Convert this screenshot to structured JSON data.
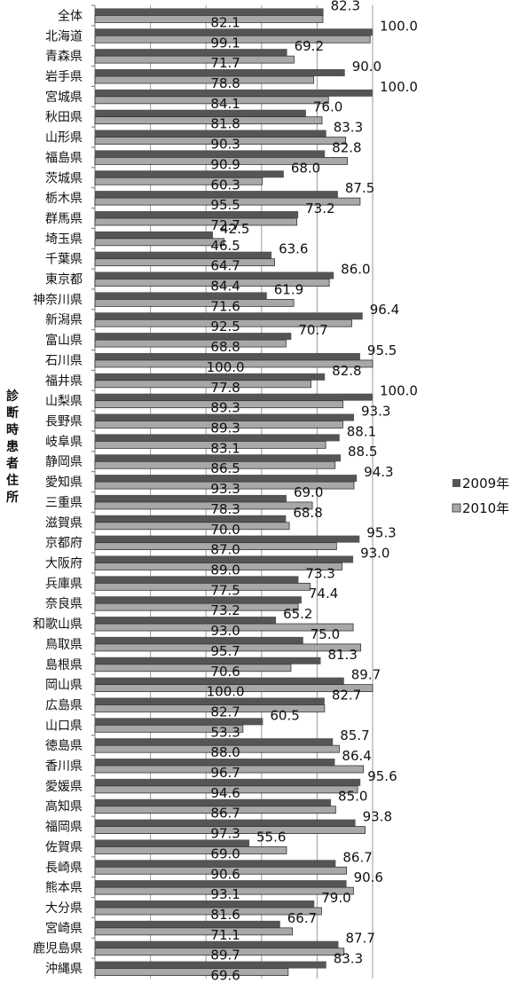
{
  "chart_data": {
    "type": "bar",
    "orientation": "horizontal",
    "ylabel": "診断時患者住所",
    "xlabel": "",
    "xlim": [
      0,
      100
    ],
    "grid": true,
    "legend_position": "right",
    "categories": [
      "全体",
      "北海道",
      "青森県",
      "岩手県",
      "宮城県",
      "秋田県",
      "山形県",
      "福島県",
      "茨城県",
      "栃木県",
      "群馬県",
      "埼玉県",
      "千葉県",
      "東京都",
      "神奈川県",
      "新潟県",
      "富山県",
      "石川県",
      "福井県",
      "山梨県",
      "長野県",
      "岐阜県",
      "静岡県",
      "愛知県",
      "三重県",
      "滋賀県",
      "京都府",
      "大阪府",
      "兵庫県",
      "奈良県",
      "和歌山県",
      "鳥取県",
      "島根県",
      "岡山県",
      "広島県",
      "山口県",
      "徳島県",
      "香川県",
      "愛媛県",
      "高知県",
      "福岡県",
      "佐賀県",
      "長崎県",
      "熊本県",
      "大分県",
      "宮崎県",
      "鹿児島県",
      "沖縄県"
    ],
    "series": [
      {
        "name": "2009年",
        "color": "#555555",
        "values": [
          82.3,
          100.0,
          69.2,
          90.0,
          100.0,
          76.0,
          83.3,
          82.8,
          68.0,
          87.5,
          73.2,
          42.5,
          63.6,
          86.0,
          61.9,
          96.4,
          70.7,
          95.5,
          82.8,
          100.0,
          93.3,
          88.1,
          88.5,
          94.3,
          69.0,
          68.8,
          95.3,
          93.0,
          73.3,
          74.4,
          65.2,
          75.0,
          81.3,
          89.7,
          82.7,
          60.5,
          85.7,
          86.4,
          95.6,
          85.0,
          93.8,
          55.6,
          86.7,
          90.6,
          79.0,
          66.7,
          87.7,
          83.3
        ]
      },
      {
        "name": "2010年",
        "color": "#a8a8a8",
        "values": [
          82.1,
          99.1,
          71.7,
          78.8,
          84.1,
          81.8,
          90.3,
          90.9,
          60.3,
          95.5,
          72.7,
          46.5,
          64.7,
          84.4,
          71.6,
          92.5,
          68.8,
          100.0,
          77.8,
          89.3,
          89.3,
          83.1,
          86.5,
          93.3,
          78.3,
          70.0,
          87.0,
          89.0,
          77.5,
          73.2,
          93.0,
          95.7,
          70.6,
          100.0,
          82.7,
          53.3,
          88.0,
          96.7,
          94.6,
          86.7,
          97.3,
          69.0,
          90.6,
          93.1,
          81.6,
          71.1,
          89.7,
          69.6
        ]
      }
    ]
  }
}
